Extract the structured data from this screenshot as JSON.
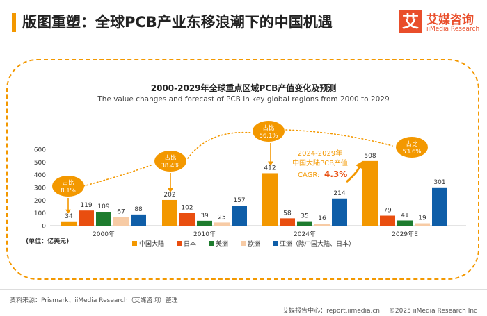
{
  "header": {
    "title": "版图重塑：全球PCB产业东移浪潮下的中国机遇"
  },
  "logo": {
    "glyph": "艾",
    "name": "艾媒咨询",
    "en": "iiMedia Research"
  },
  "chart_data": {
    "type": "bar",
    "title": "2000-2029年全球重点区域PCB产值变化及预测",
    "subtitle": "The value changes and forecast of PCB in key global regions from 2000 to 2029",
    "ylabel": "(单位：亿美元)",
    "ylim": [
      0,
      600
    ],
    "yticks": [
      0,
      100,
      200,
      300,
      400,
      500,
      600
    ],
    "categories": [
      "2000年",
      "2010年",
      "2024年",
      "2029年E"
    ],
    "series": [
      {
        "name": "中国大陆",
        "color": "#f39800",
        "values": [
          34,
          202,
          412,
          508
        ]
      },
      {
        "name": "日本",
        "color": "#e94e0f",
        "values": [
          119,
          102,
          58,
          79
        ]
      },
      {
        "name": "美洲",
        "color": "#1e7c2e",
        "values": [
          109,
          39,
          35,
          41
        ]
      },
      {
        "name": "欧洲",
        "color": "#f7cba5",
        "values": [
          67,
          25,
          16,
          19
        ]
      },
      {
        "name": "亚洲（除中国大陆、日本）",
        "color": "#0f5ea8",
        "values": [
          88,
          157,
          214,
          301
        ]
      }
    ],
    "share_label": "占比",
    "share_values": [
      "8.1%",
      "38.4%",
      "56.1%",
      "53.6%"
    ],
    "cagr_title": "2024-2029年\n中国大陆PCB产值",
    "cagr_label": "CAGR:",
    "cagr_value": "4.3%",
    "legend_position": "bottom"
  },
  "footer": {
    "source": "资料来源：Prismark、iiMedia Research（艾媒咨询）整理",
    "report_center": "艾媒报告中心：report.iimedia.cn",
    "copyright": "©2025 iiMedia Research Inc"
  }
}
